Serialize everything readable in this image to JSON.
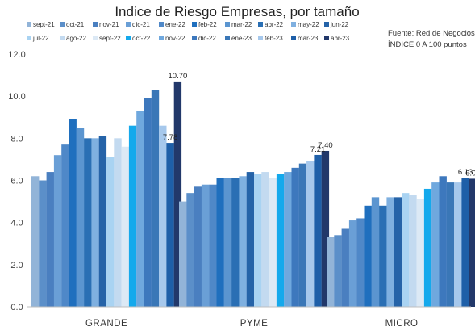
{
  "chart_data": {
    "type": "bar",
    "title": "Indice de Riesgo Empresas, por tamaño",
    "source_lines": [
      "Fuente: Red de Negocios CCS",
      "ÍNDICE 0 A 100  puntos"
    ],
    "categories": [
      "GRANDE",
      "PYME",
      "MICRO"
    ],
    "ylim": [
      0,
      12
    ],
    "yticks": [
      0,
      2,
      4,
      6,
      8,
      10,
      12
    ],
    "ytick_labels": [
      "0.0",
      "2.0",
      "4.0",
      "6.0",
      "8.0",
      "10.0",
      "12.0"
    ],
    "grid": false,
    "legend_position": "top",
    "series": [
      {
        "name": "sept-21",
        "color": "#92b4d8",
        "values": [
          6.2,
          5.0,
          3.3
        ]
      },
      {
        "name": "oct-21",
        "color": "#5b8fc9",
        "values": [
          6.0,
          5.4,
          3.4
        ]
      },
      {
        "name": "nov-21",
        "color": "#4a7fc0",
        "values": [
          6.4,
          5.7,
          3.7
        ]
      },
      {
        "name": "dic-21",
        "color": "#6a9fd6",
        "values": [
          7.2,
          5.8,
          4.1
        ]
      },
      {
        "name": "ene-22",
        "color": "#4f88c8",
        "values": [
          7.7,
          5.8,
          4.2
        ]
      },
      {
        "name": "feb-22",
        "color": "#1f6fbe",
        "values": [
          8.9,
          6.1,
          4.8
        ]
      },
      {
        "name": "mar-22",
        "color": "#5b95d0",
        "values": [
          8.5,
          6.1,
          5.2
        ]
      },
      {
        "name": "abr-22",
        "color": "#2a6fb4",
        "values": [
          8.0,
          6.1,
          4.8
        ]
      },
      {
        "name": "may-22",
        "color": "#7fb0e0",
        "values": [
          8.0,
          6.2,
          5.2
        ]
      },
      {
        "name": "jun-22",
        "color": "#2563a8",
        "values": [
          8.1,
          6.4,
          5.2
        ]
      },
      {
        "name": "jul-22",
        "color": "#a9d3f2",
        "values": [
          7.1,
          6.3,
          5.4
        ]
      },
      {
        "name": "ago-22",
        "color": "#c3daf0",
        "values": [
          8.0,
          6.4,
          5.3
        ]
      },
      {
        "name": "sept-22",
        "color": "#dce9f5",
        "values": [
          7.6,
          6.1,
          5.1
        ]
      },
      {
        "name": "oct-22",
        "color": "#14a9ec",
        "values": [
          8.6,
          6.3,
          5.6
        ]
      },
      {
        "name": "nov-22",
        "color": "#6fa8de",
        "values": [
          9.3,
          6.4,
          5.9
        ]
      },
      {
        "name": "dic-22",
        "color": "#3d78bd",
        "values": [
          9.9,
          6.6,
          6.2
        ]
      },
      {
        "name": "ene-23",
        "color": "#3a77b7",
        "values": [
          10.3,
          6.8,
          5.9
        ]
      },
      {
        "name": "feb-23",
        "color": "#a6c8ec",
        "values": [
          8.6,
          6.9,
          5.9
        ]
      },
      {
        "name": "mar-23",
        "color": "#1e5fa8",
        "values": [
          7.78,
          7.21,
          6.13
        ]
      },
      {
        "name": "abr-23",
        "color": "#22386a",
        "values": [
          10.7,
          7.4,
          6.08
        ]
      }
    ],
    "data_labels": [
      {
        "series": "mar-23",
        "category": "GRANDE",
        "text": "7.78"
      },
      {
        "series": "abr-23",
        "category": "GRANDE",
        "text": "10.70"
      },
      {
        "series": "mar-23",
        "category": "PYME",
        "text": "7.21"
      },
      {
        "series": "abr-23",
        "category": "PYME",
        "text": "7.40"
      },
      {
        "series": "mar-23",
        "category": "MICRO",
        "text": "6.13"
      },
      {
        "series": "abr-23",
        "category": "MICRO",
        "text": "6.08"
      }
    ]
  }
}
